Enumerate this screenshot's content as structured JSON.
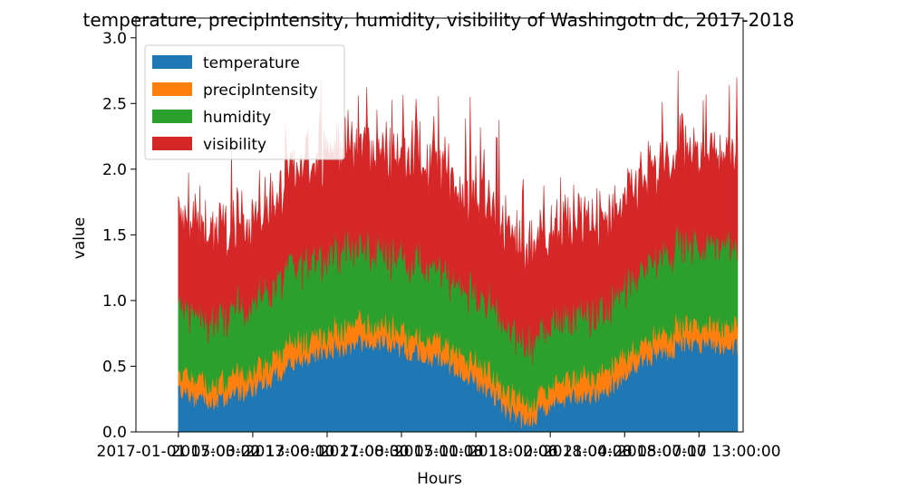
{
  "chart_data": {
    "type": "area",
    "stacked": true,
    "title": "temperature, precipIntensity, humidity, visibility of Washingotn dc, 2017-2018",
    "xlabel": "Hours",
    "ylabel": "value",
    "ylim": [
      0,
      3.15
    ],
    "y_ticks": [
      "0.0",
      "0.5",
      "1.0",
      "1.5",
      "2.0",
      "2.5",
      "3.0"
    ],
    "x_tick_labels": [
      "2017-01-01 05:00:00",
      "2017-03-22 13:00:00",
      "2017-06-10 21:00:00",
      "2017-08-30 05:00:00",
      "2017-11-18 13:00:00",
      "2018-02-06 21:00:00",
      "2018-04-28 05:00:00",
      "2018-07-17 13:00:00"
    ],
    "x_tick_positions_hours": [
      0,
      1928,
      3856,
      5784,
      7712,
      9640,
      11568,
      13496
    ],
    "x_range_hours": [
      -1100,
      14640
    ],
    "x_data_end_hours": 14500,
    "legend_position": "upper left",
    "grid": false,
    "x_anchor_hours": [
      0,
      500,
      1000,
      1500,
      2000,
      2500,
      3000,
      3500,
      4000,
      4500,
      5000,
      5500,
      6000,
      6500,
      7000,
      7500,
      8000,
      8500,
      9000,
      9500,
      10000,
      10500,
      11000,
      11500,
      12000,
      12500,
      13000,
      13500,
      14000,
      14500
    ],
    "series": [
      {
        "name": "temperature",
        "color": "#1f77b4",
        "values": [
          0.33,
          0.25,
          0.22,
          0.28,
          0.35,
          0.43,
          0.53,
          0.6,
          0.63,
          0.67,
          0.69,
          0.67,
          0.62,
          0.58,
          0.52,
          0.43,
          0.33,
          0.18,
          0.07,
          0.18,
          0.25,
          0.28,
          0.3,
          0.4,
          0.55,
          0.6,
          0.65,
          0.68,
          0.66,
          0.65
        ]
      },
      {
        "name": "precipIntensity",
        "color": "#ff7f0e",
        "values": [
          0.14,
          0.15,
          0.15,
          0.15,
          0.15,
          0.15,
          0.15,
          0.15,
          0.16,
          0.17,
          0.15,
          0.15,
          0.14,
          0.15,
          0.15,
          0.15,
          0.15,
          0.15,
          0.15,
          0.15,
          0.14,
          0.15,
          0.15,
          0.15,
          0.14,
          0.14,
          0.15,
          0.15,
          0.15,
          0.15
        ]
      },
      {
        "name": "humidity",
        "color": "#2ca02c",
        "values": [
          0.48,
          0.48,
          0.49,
          0.52,
          0.53,
          0.55,
          0.57,
          0.58,
          0.6,
          0.58,
          0.57,
          0.55,
          0.55,
          0.54,
          0.54,
          0.52,
          0.52,
          0.5,
          0.46,
          0.48,
          0.48,
          0.48,
          0.48,
          0.5,
          0.55,
          0.58,
          0.6,
          0.62,
          0.62,
          0.62
        ]
      },
      {
        "name": "visibility",
        "color": "#d62728",
        "values": [
          0.65,
          0.7,
          0.66,
          0.62,
          0.62,
          0.63,
          0.7,
          0.75,
          0.77,
          0.76,
          0.76,
          0.74,
          0.78,
          0.78,
          0.75,
          0.74,
          0.73,
          0.7,
          0.72,
          0.7,
          0.7,
          0.7,
          0.66,
          0.65,
          0.7,
          0.68,
          0.7,
          0.7,
          0.72,
          0.72
        ]
      }
    ]
  }
}
